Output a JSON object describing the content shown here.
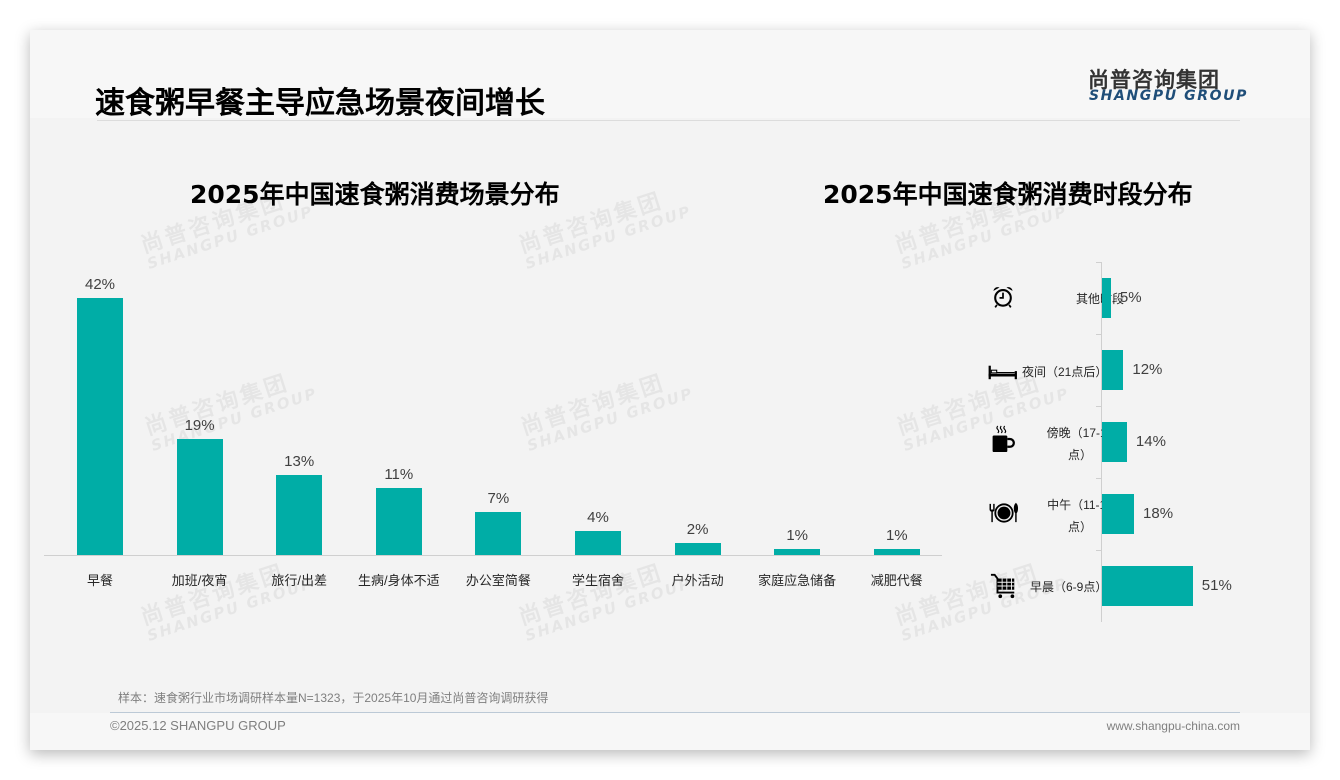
{
  "slide": {
    "title": "速食粥早餐主导应急场景夜间增长",
    "logo": {
      "cn": "尚普咨询集团",
      "en": "SHANGPU GROUP"
    },
    "watermark": {
      "cn": "尚普咨询集团",
      "en": "SHANGPU GROUP"
    },
    "sample_note": "样本：速食粥行业市场调研样本量N=1323，于2025年10月通过尚普咨询调研获得",
    "footer": {
      "copyright": "©2025.12 SHANGPU GROUP",
      "url": "www.shangpu-china.com"
    },
    "colors": {
      "bar": "#00ada6",
      "logo_en": "#1f4e79",
      "background": "#f3f3f3"
    }
  },
  "chart_data": [
    {
      "type": "bar",
      "title": "2025年中国速食粥消费场景分布",
      "categories": [
        "早餐",
        "加班/夜宵",
        "旅行/出差",
        "生病/身体不适",
        "办公室简餐",
        "学生宿舍",
        "户外活动",
        "家庭应急储备",
        "减肥代餐"
      ],
      "values": [
        42,
        19,
        13,
        11,
        7,
        4,
        2,
        1,
        1
      ],
      "value_labels": [
        "42%",
        "19%",
        "13%",
        "11%",
        "7%",
        "4%",
        "2%",
        "1%",
        "1%"
      ],
      "xlabel": "",
      "ylabel": "",
      "unit": "%",
      "grid": false,
      "legend": false,
      "orientation": "vertical"
    },
    {
      "type": "bar",
      "title": "2025年中国速食粥消费时段分布",
      "categories": [
        "其他时段",
        "夜间（21点后）",
        "傍晚（17-19点）",
        "中午（11-13点）",
        "早晨（6-9点）"
      ],
      "values": [
        5,
        12,
        14,
        18,
        51
      ],
      "value_labels": [
        "5%",
        "12%",
        "14%",
        "18%",
        "51%"
      ],
      "icons": [
        "alarm-clock-icon",
        "bed-icon",
        "coffee-cup-icon",
        "plate-cutlery-icon",
        "shopping-cart-icon"
      ],
      "xlabel": "",
      "ylabel": "",
      "unit": "%",
      "grid": false,
      "legend": false,
      "orientation": "horizontal"
    }
  ]
}
